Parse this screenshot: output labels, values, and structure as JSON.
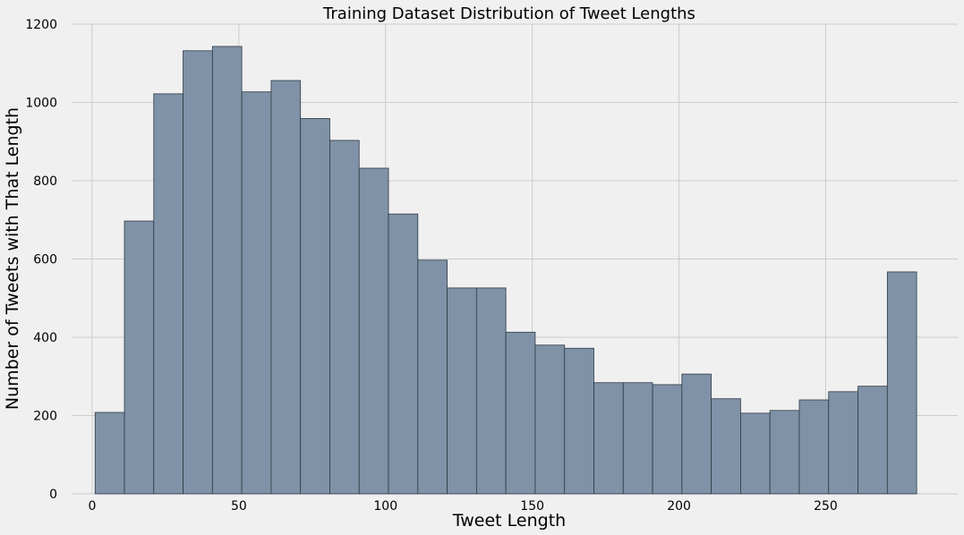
{
  "chart_data": {
    "type": "bar",
    "title": "Training Dataset Distribution of Tweet Lengths",
    "xlabel": "Tweet Length",
    "ylabel": "Number of Tweets with That Length",
    "xlim": [
      -7,
      295
    ],
    "ylim": [
      0,
      1200
    ],
    "xticks": [
      0,
      50,
      100,
      150,
      200,
      250
    ],
    "yticks": [
      0,
      200,
      400,
      600,
      800,
      1000,
      1200
    ],
    "grid": true,
    "bar_color": "#7f92a7",
    "bins": [
      {
        "x0": 1,
        "x1": 11,
        "value": 208
      },
      {
        "x0": 11,
        "x1": 21,
        "value": 697
      },
      {
        "x0": 21,
        "x1": 31,
        "value": 1022
      },
      {
        "x0": 31,
        "x1": 41,
        "value": 1132
      },
      {
        "x0": 41,
        "x1": 51,
        "value": 1143
      },
      {
        "x0": 51,
        "x1": 61,
        "value": 1027
      },
      {
        "x0": 61,
        "x1": 71,
        "value": 1056
      },
      {
        "x0": 71,
        "x1": 81,
        "value": 959
      },
      {
        "x0": 81,
        "x1": 91,
        "value": 903
      },
      {
        "x0": 91,
        "x1": 101,
        "value": 832
      },
      {
        "x0": 101,
        "x1": 111,
        "value": 715
      },
      {
        "x0": 111,
        "x1": 121,
        "value": 597
      },
      {
        "x0": 121,
        "x1": 131,
        "value": 526
      },
      {
        "x0": 131,
        "x1": 141,
        "value": 526
      },
      {
        "x0": 141,
        "x1": 151,
        "value": 413
      },
      {
        "x0": 151,
        "x1": 161,
        "value": 380
      },
      {
        "x0": 161,
        "x1": 171,
        "value": 372
      },
      {
        "x0": 171,
        "x1": 181,
        "value": 284
      },
      {
        "x0": 181,
        "x1": 191,
        "value": 284
      },
      {
        "x0": 191,
        "x1": 201,
        "value": 279
      },
      {
        "x0": 201,
        "x1": 211,
        "value": 306
      },
      {
        "x0": 211,
        "x1": 221,
        "value": 243
      },
      {
        "x0": 221,
        "x1": 231,
        "value": 206
      },
      {
        "x0": 231,
        "x1": 241,
        "value": 213
      },
      {
        "x0": 241,
        "x1": 251,
        "value": 240
      },
      {
        "x0": 251,
        "x1": 261,
        "value": 261
      },
      {
        "x0": 261,
        "x1": 271,
        "value": 275
      },
      {
        "x0": 271,
        "x1": 281,
        "value": 567
      }
    ]
  }
}
